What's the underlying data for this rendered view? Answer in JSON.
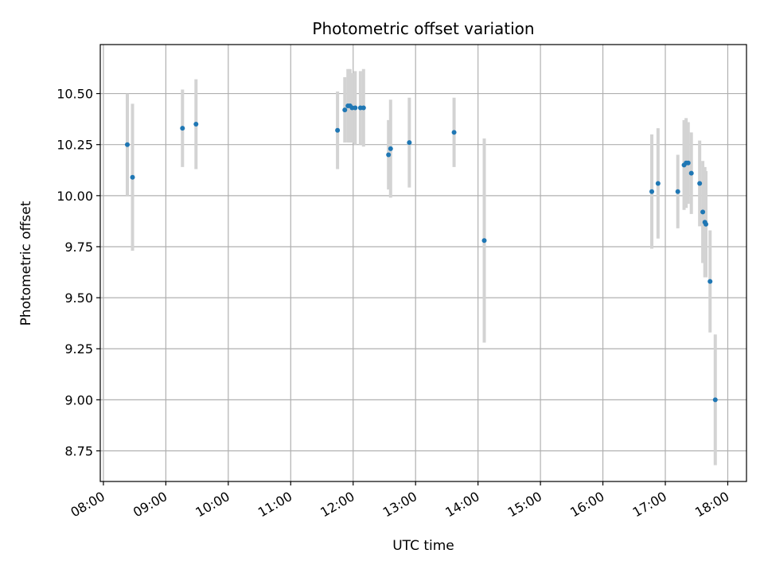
{
  "chart_data": {
    "type": "scatter",
    "title": "Photometric offset variation",
    "xlabel": "UTC time",
    "ylabel": "Photometric offset",
    "x_axis": "time (HH:MM)",
    "xlim": [
      "07:57",
      "18:18"
    ],
    "ylim": [
      8.6,
      10.74
    ],
    "x_ticks": [
      "08:00",
      "09:00",
      "10:00",
      "11:00",
      "12:00",
      "13:00",
      "14:00",
      "15:00",
      "16:00",
      "17:00",
      "18:00"
    ],
    "y_ticks": [
      "8.75",
      "9.00",
      "9.25",
      "9.50",
      "9.75",
      "10.00",
      "10.25",
      "10.50"
    ],
    "grid": true,
    "marker_color": "#1f77b4",
    "errorbar_color": "#d3d3d3",
    "series": [
      {
        "x": [
          "08:23",
          "08:28",
          "09:16",
          "09:29",
          "11:45",
          "11:52",
          "11:55",
          "11:57",
          "11:59",
          "12:02",
          "12:07",
          "12:10",
          "12:34",
          "12:36",
          "12:54",
          "13:37",
          "14:06",
          "16:47",
          "16:53",
          "17:12",
          "17:18",
          "17:20",
          "17:22",
          "17:25",
          "17:33",
          "17:36",
          "17:38",
          "17:39",
          "17:43",
          "17:48"
        ],
        "y": [
          10.25,
          10.09,
          10.33,
          10.35,
          10.32,
          10.42,
          10.44,
          10.44,
          10.43,
          10.43,
          10.43,
          10.43,
          10.2,
          10.23,
          10.26,
          10.31,
          9.78,
          10.02,
          10.06,
          10.02,
          10.15,
          10.16,
          10.16,
          10.11,
          10.06,
          9.92,
          9.87,
          9.86,
          9.58,
          9.0
        ],
        "err": [
          0.25,
          0.36,
          0.19,
          0.22,
          0.19,
          0.16,
          0.18,
          0.18,
          0.17,
          0.18,
          0.18,
          0.19,
          0.17,
          0.24,
          0.22,
          0.17,
          0.5,
          0.28,
          0.27,
          0.18,
          0.22,
          0.22,
          0.2,
          0.2,
          0.21,
          0.25,
          0.27,
          0.26,
          0.25,
          0.32
        ]
      }
    ]
  }
}
